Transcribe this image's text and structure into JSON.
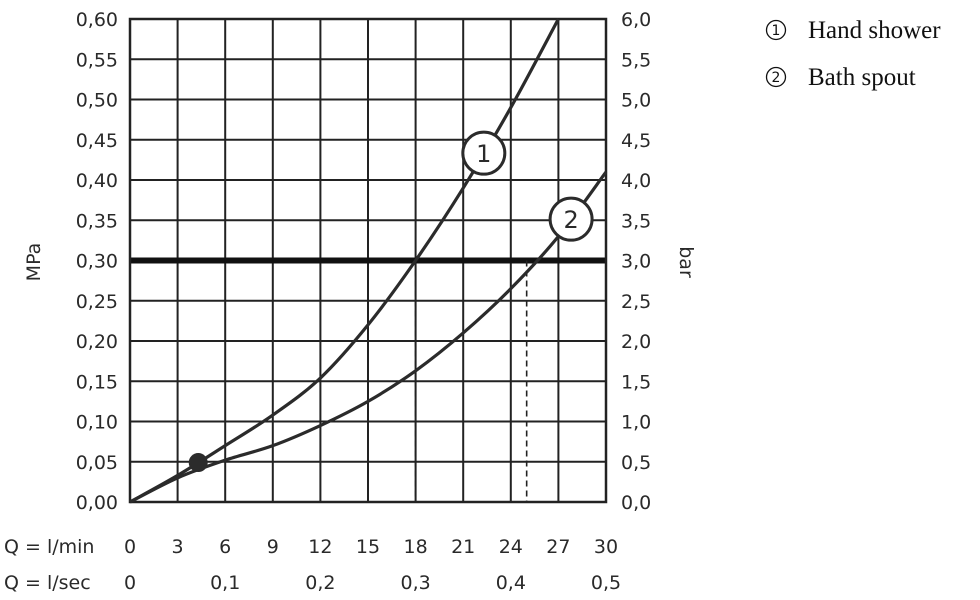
{
  "chart_data": {
    "type": "line",
    "x_unit_label": "Q = l/min",
    "x_secondary_unit_label": "Q = l/sec",
    "x_ticks": [
      "0",
      "3",
      "6",
      "9",
      "12",
      "15",
      "18",
      "21",
      "24",
      "27",
      "30"
    ],
    "x_secondary_ticks": [
      "0",
      "0,1",
      "0,2",
      "0,3",
      "0,4",
      "0,5"
    ],
    "xlim": [
      0,
      30
    ],
    "ylabel_left": "MPa",
    "ylabel_right": "bar",
    "y_ticks_left": [
      "0,00",
      "0,05",
      "0,10",
      "0,15",
      "0,20",
      "0,25",
      "0,30",
      "0,35",
      "0,40",
      "0,45",
      "0,50",
      "0,55",
      "0,60"
    ],
    "y_ticks_right": [
      "0,0",
      "0,5",
      "1,0",
      "1,5",
      "2,0",
      "2,5",
      "3,0",
      "3,5",
      "4,0",
      "4,5",
      "5,0",
      "5,5",
      "6,0"
    ],
    "ylim": [
      0,
      0.6
    ],
    "grid": true,
    "reference_line_y": 0.3,
    "reference_drops_x": [
      18,
      25
    ],
    "start_point": {
      "x": 4.3,
      "y": 0.049
    },
    "series": [
      {
        "name": "Hand shower",
        "marker": "1",
        "x": [
          0,
          3,
          6,
          9,
          12,
          15,
          18,
          21,
          24,
          27
        ],
        "y": [
          0,
          0.033,
          0.07,
          0.108,
          0.154,
          0.22,
          0.3,
          0.39,
          0.49,
          0.6
        ],
        "label_at_x": 22.3
      },
      {
        "name": "Bath spout",
        "marker": "2",
        "x": [
          0,
          3,
          6,
          9,
          12,
          15,
          18,
          21,
          24,
          27,
          30
        ],
        "y": [
          0,
          0.03,
          0.052,
          0.07,
          0.095,
          0.125,
          0.163,
          0.21,
          0.265,
          0.33,
          0.41
        ],
        "label_at_x": 27.8
      }
    ],
    "legend": [
      {
        "marker": "1",
        "label": "Hand shower"
      },
      {
        "marker": "2",
        "label": "Bath spout"
      }
    ],
    "legend_position": "top-right"
  }
}
